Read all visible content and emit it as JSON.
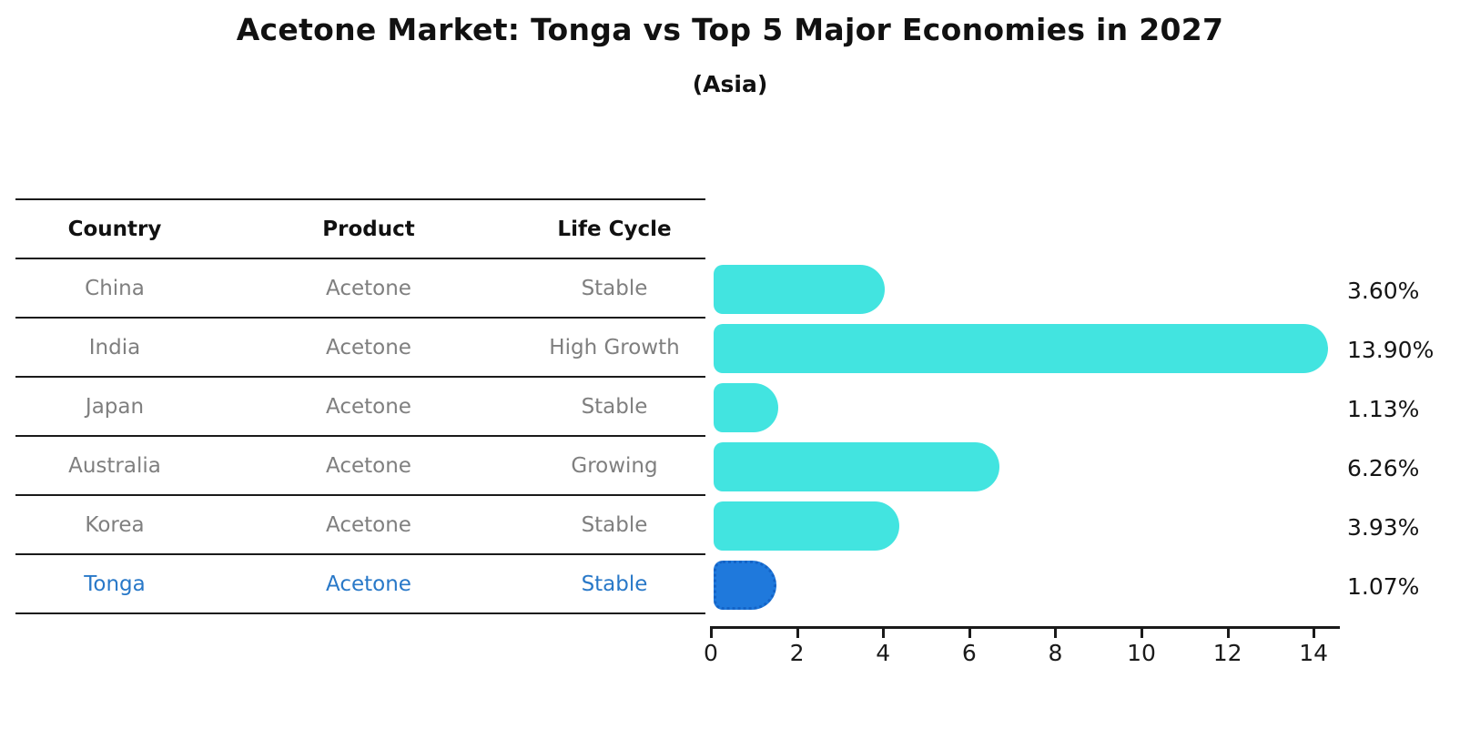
{
  "header": {
    "title": "Acetone Market: Tonga vs Top 5 Major Economies in 2027",
    "subtitle": "(Asia)"
  },
  "table": {
    "columns": [
      "Country",
      "Product",
      "Life Cycle"
    ],
    "rows": [
      {
        "country": "China",
        "product": "Acetone",
        "life_cycle": "Stable",
        "highlight": false
      },
      {
        "country": "India",
        "product": "Acetone",
        "life_cycle": "High Growth",
        "highlight": false
      },
      {
        "country": "Japan",
        "product": "Acetone",
        "life_cycle": "Stable",
        "highlight": false
      },
      {
        "country": "Australia",
        "product": "Acetone",
        "life_cycle": "Growing",
        "highlight": false
      },
      {
        "country": "Korea",
        "product": "Acetone",
        "life_cycle": "Stable",
        "highlight": false
      },
      {
        "country": "Tonga",
        "product": "Acetone",
        "life_cycle": "Stable",
        "highlight": true
      }
    ]
  },
  "chart_data": {
    "type": "bar",
    "orientation": "horizontal",
    "title": "Acetone Market: Tonga vs Top 5 Major Economies in 2027",
    "subtitle": "(Asia)",
    "categories": [
      "China",
      "India",
      "Japan",
      "Australia",
      "Korea",
      "Tonga"
    ],
    "values": [
      3.6,
      13.9,
      1.13,
      6.26,
      3.93,
      1.07
    ],
    "value_labels": [
      "3.60%",
      "13.90%",
      "1.13%",
      "6.26%",
      "3.93%",
      "1.07%"
    ],
    "x_ticks": [
      0,
      2,
      4,
      6,
      8,
      10,
      12,
      14
    ],
    "xlim": [
      0,
      14.6
    ],
    "xlabel": "",
    "ylabel": "",
    "grid": false,
    "legend": false,
    "highlight_index": 5
  },
  "colors": {
    "bar_fill": "#42e4e0",
    "highlight_bar_fill": "#1f79dc",
    "highlight_bar_border": "#1463c6",
    "highlight_text": "#2878c8",
    "row_text": "#7f7f7f",
    "header_text": "#111111",
    "axis": "#1a1a1a"
  }
}
